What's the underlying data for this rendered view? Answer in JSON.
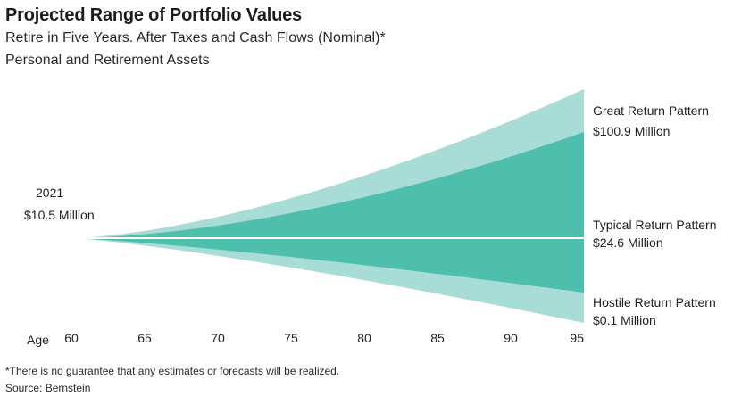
{
  "chart_data": {
    "type": "area",
    "title": "Projected Range of Portfolio Values",
    "subtitle": "Retire in Five Years. After Taxes and Cash Flows (Nominal)*",
    "subtitle2": "Personal and Retirement Assets",
    "xlabel": "Age",
    "x_ticks": [
      "60",
      "65",
      "70",
      "75",
      "80",
      "85",
      "90",
      "95"
    ],
    "x_range": [
      60,
      95
    ],
    "start": {
      "year": "2021",
      "value": "$10.5 Million"
    },
    "scenarios": [
      {
        "name": "Great Return Pattern",
        "value": "$100.9 Million"
      },
      {
        "name": "Typical Return Pattern",
        "value": "$24.6 Million"
      },
      {
        "name": "Hostile Return Pattern",
        "value": "$0.1 Million"
      }
    ],
    "colors": {
      "outer_band": "#a7ddd6",
      "inner_band": "#4fbfad",
      "median_line": "#ffffff"
    },
    "footnote": "*There is no guarantee that any estimates or forecasts will be realized.",
    "source": "Source: Bernstein"
  }
}
